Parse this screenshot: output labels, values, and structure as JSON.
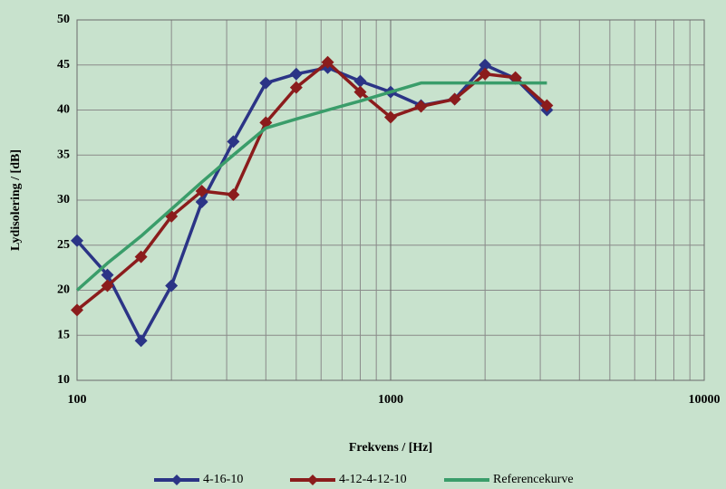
{
  "chart_data": {
    "type": "line",
    "x_label": "Frekvens / [Hz]",
    "y_label": "Lydisolering / [dB]",
    "x": [
      100,
      125,
      160,
      200,
      250,
      315,
      400,
      500,
      630,
      800,
      1000,
      1250,
      1600,
      2000,
      2500,
      3150
    ],
    "series": [
      {
        "name": "4-16-10",
        "color": "#2b3486",
        "marker": "diamond",
        "values": [
          25.5,
          21.7,
          14.4,
          20.5,
          29.8,
          36.5,
          43,
          44,
          44.7,
          43.2,
          42,
          40.5,
          41.2,
          45,
          43.5,
          40
        ]
      },
      {
        "name": "4-12-4-12-10",
        "color": "#8b1c1c",
        "marker": "diamond",
        "values": [
          17.8,
          20.5,
          23.7,
          28.2,
          31,
          30.6,
          38.6,
          42.5,
          45.3,
          42,
          39.2,
          40.4,
          41.2,
          44,
          43.6,
          40.5
        ]
      },
      {
        "name": "Referencekurve",
        "color": "#3a9d6a",
        "marker": "none",
        "values": [
          20,
          23,
          26,
          29,
          32,
          35,
          38,
          39,
          40,
          41,
          42,
          43,
          43,
          43,
          43,
          43
        ]
      }
    ],
    "xscale": "log",
    "xlim": [
      100,
      10000
    ],
    "xticks": [
      100,
      1000,
      10000
    ],
    "xminor": [
      200,
      300,
      400,
      500,
      600,
      700,
      800,
      900,
      2000,
      3000,
      4000,
      5000,
      6000,
      7000,
      8000,
      9000
    ],
    "ylim": [
      10,
      50
    ],
    "yticks": [
      10,
      15,
      20,
      25,
      30,
      35,
      40,
      45,
      50
    ],
    "grid": true,
    "legend": "bottom",
    "background": "#c8e2cd"
  }
}
